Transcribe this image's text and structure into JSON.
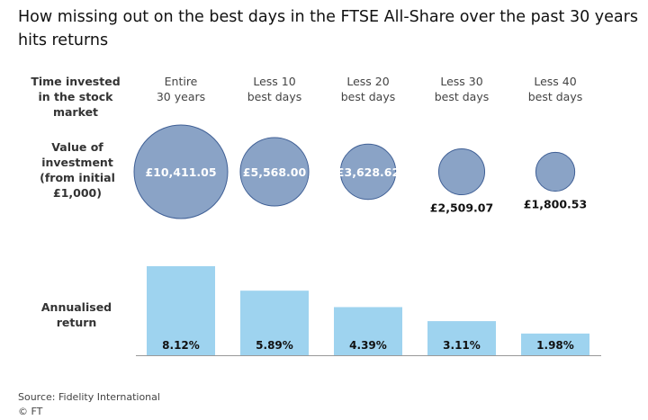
{
  "title": "How missing out on the best days in the FTSE All-Share over the past 30 years hits returns",
  "row_headers": {
    "time_line1": "Time invested",
    "time_line2": "in the stock market",
    "value_line1": "Value of",
    "value_line2": "investment",
    "value_line3": "(from initial",
    "value_line4": "£1,000)",
    "return_line1": "Annualised",
    "return_line2": "return"
  },
  "columns": [
    {
      "line1": "Entire",
      "line2": "30 years"
    },
    {
      "line1": "Less 10",
      "line2": "best days"
    },
    {
      "line1": "Less 20",
      "line2": "best days"
    },
    {
      "line1": "Less 30",
      "line2": "best days"
    },
    {
      "line1": "Less 40",
      "line2": "best days"
    }
  ],
  "chart_data": [
    {
      "type": "bubble",
      "categories": [
        "Entire 30 years",
        "Less 10 best days",
        "Less 20 best days",
        "Less 30 best days",
        "Less 40 best days"
      ],
      "values": [
        10411.05,
        5568.0,
        3628.62,
        2509.07,
        1800.53
      ],
      "labels": [
        "£10,411.05",
        "£5,568.00",
        "£3,628.62",
        "£2,509.07",
        "£1,800.53"
      ],
      "label_inside": [
        true,
        true,
        true,
        false,
        false
      ]
    },
    {
      "type": "bar",
      "categories": [
        "Entire 30 years",
        "Less 10 best days",
        "Less 20 best days",
        "Less 30 best days",
        "Less 40 best days"
      ],
      "values": [
        8.12,
        5.89,
        4.39,
        3.11,
        1.98
      ],
      "labels": [
        "8.12%",
        "5.89%",
        "4.39%",
        "3.11%",
        "1.98%"
      ]
    }
  ],
  "colors": {
    "bubble_fill": "#8aa3c6",
    "bubble_stroke": "#3f5f95",
    "bar_fill": "#9ed3ef",
    "baseline": "#999999"
  },
  "source": "Source: Fidelity International",
  "copyright": "© FT"
}
